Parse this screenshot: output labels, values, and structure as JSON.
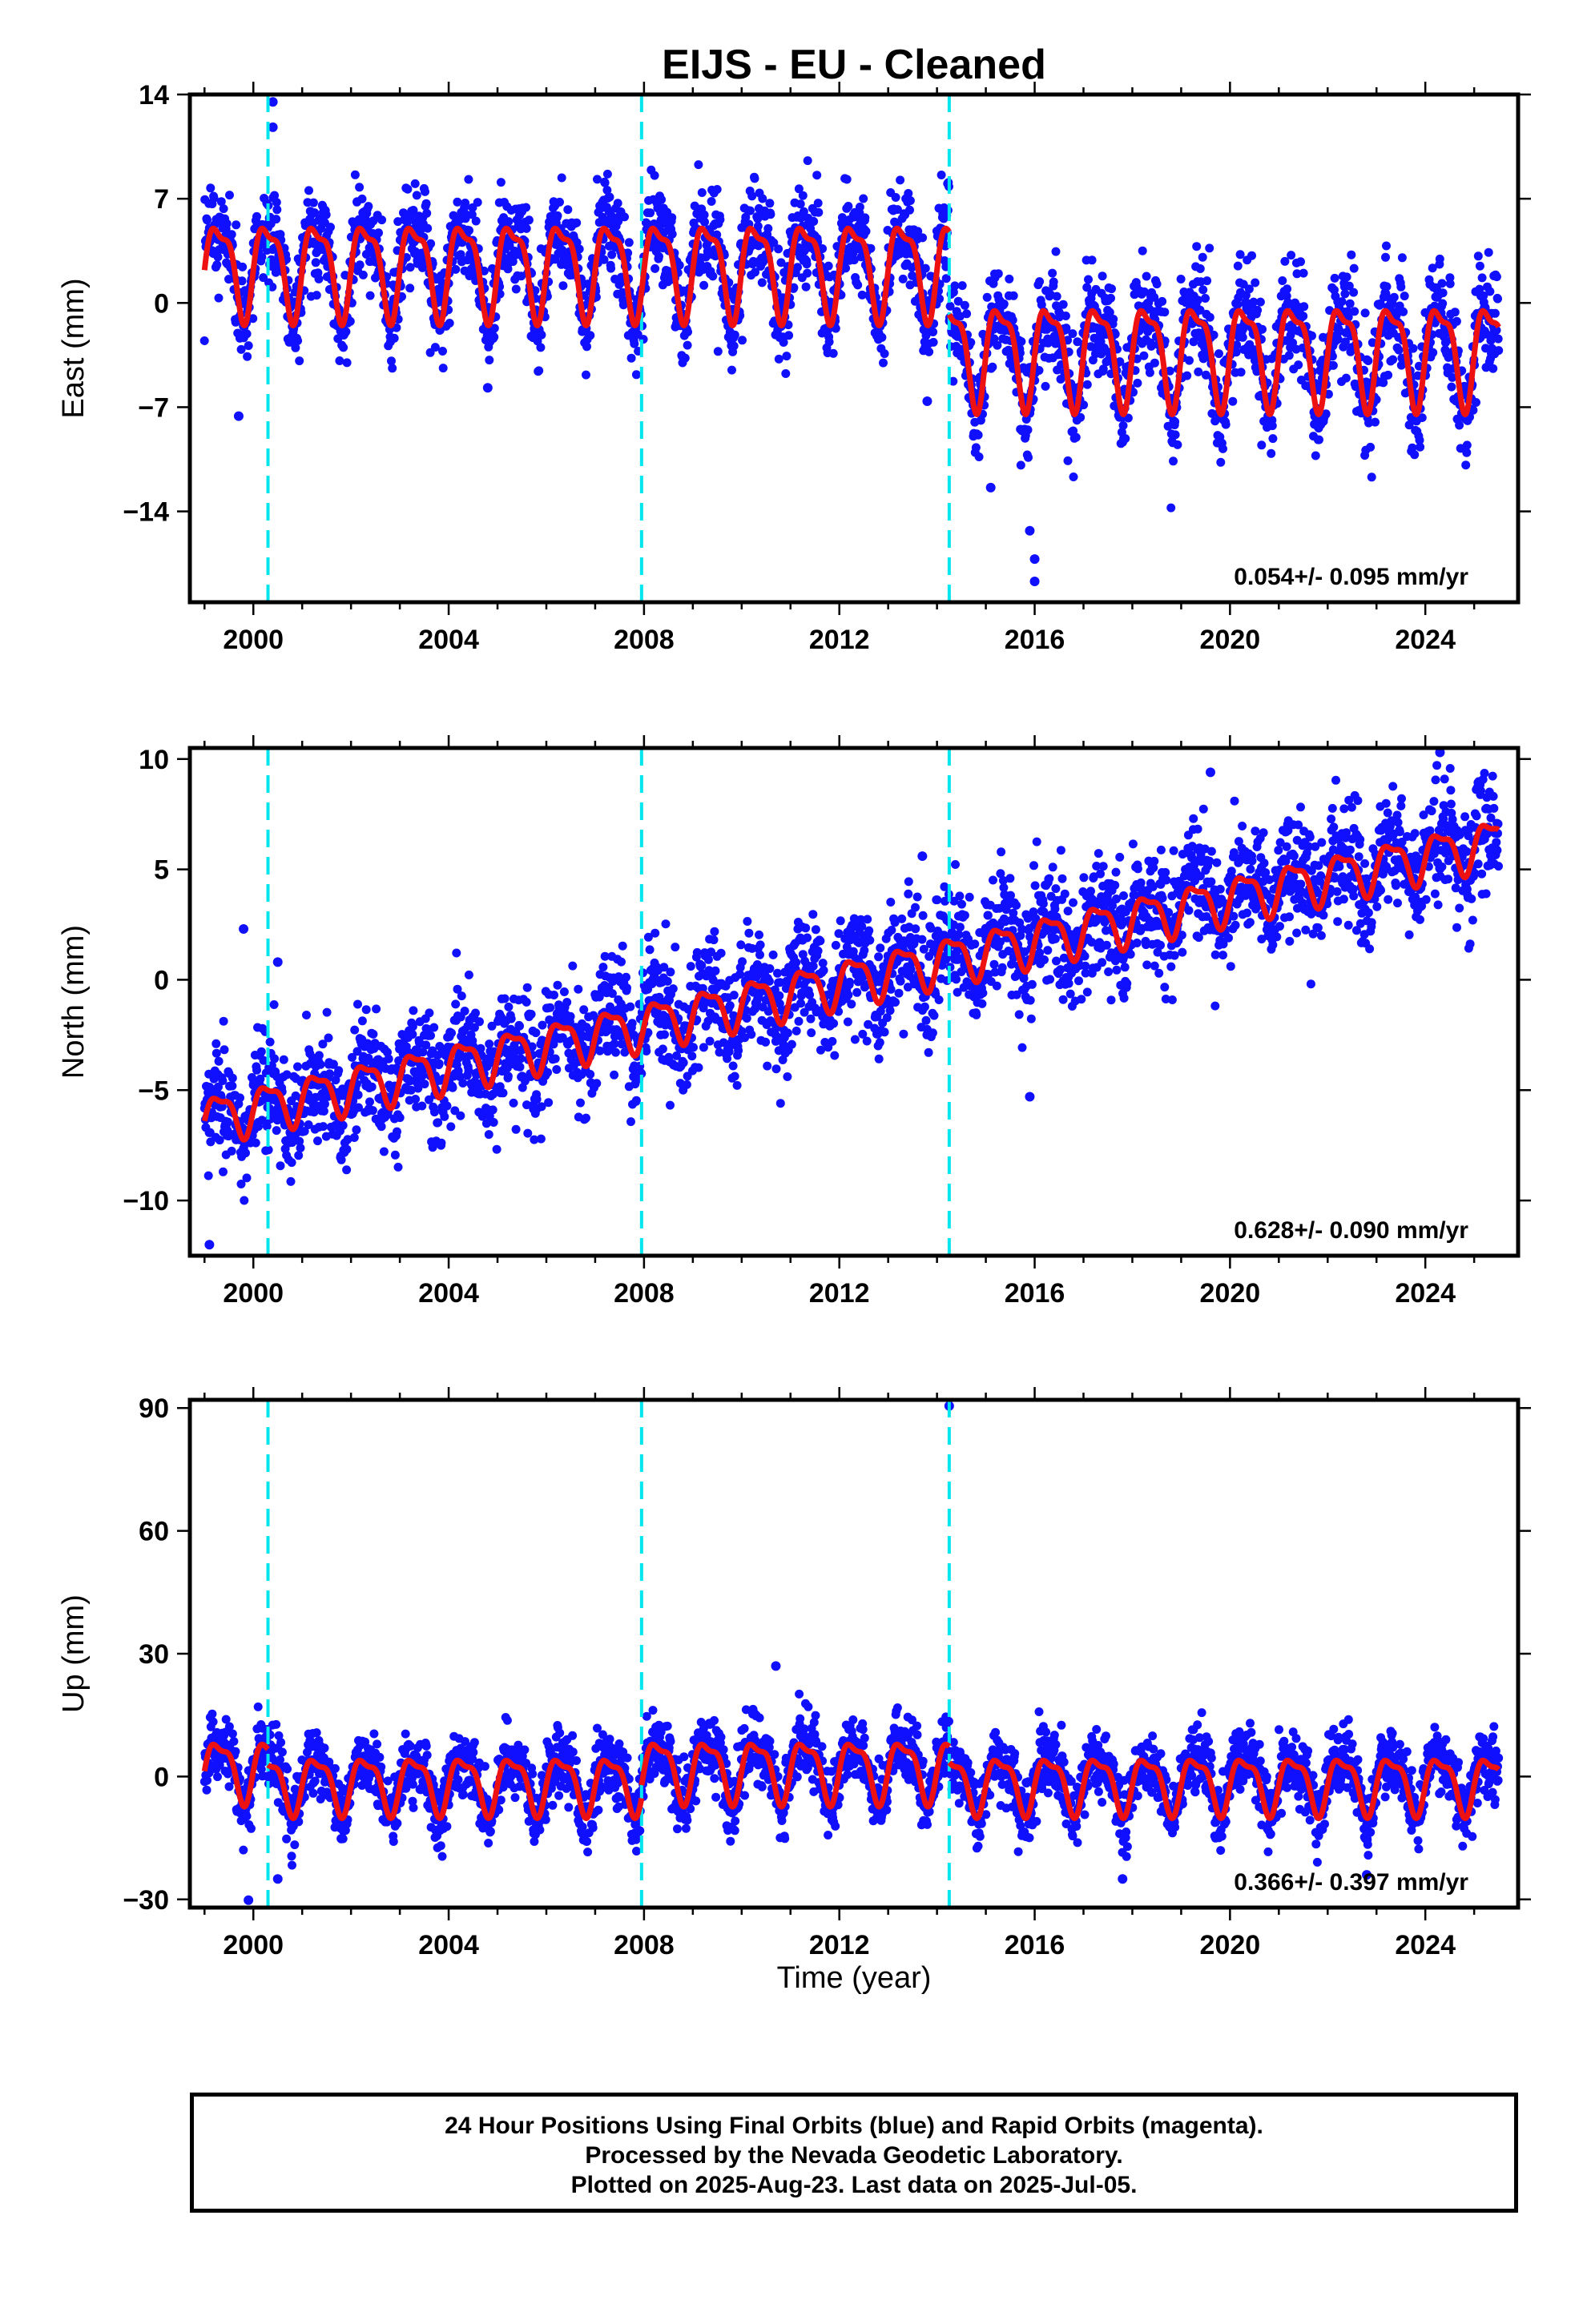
{
  "title": "EIJS  - EU - Cleaned",
  "xlabel": "Time (year)",
  "footer": {
    "line1": "24 Hour Positions Using Final Orbits (blue) and Rapid Orbits (magenta).",
    "line2": "Processed by the Nevada Geodetic Laboratory.",
    "line3": "Plotted on 2025-Aug-23. Last data on 2025-Jul-05."
  },
  "colors": {
    "final_orbits": "#1010ff",
    "model": "#ee1111",
    "offsets": "#00e5ee"
  },
  "chart_data": [
    {
      "type": "scatter",
      "ylabel": "East (mm)",
      "xlim": [
        1998.7,
        2025.9
      ],
      "ylim": [
        -20.1,
        14
      ],
      "xticks": [
        2000,
        2004,
        2008,
        2012,
        2016,
        2020,
        2024
      ],
      "yticks": [
        14,
        7,
        0,
        -7,
        -14
      ],
      "rate_label": "0.054+/- 0.095 mm/yr",
      "offset_epochs": [
        2000.3,
        2007.95,
        2014.25
      ],
      "series": [
        {
          "role": "daily positions",
          "x_range": [
            1999.0,
            2025.5
          ],
          "segments": [
            {
              "from": 1999.0,
              "to": 2014.25,
              "mean": 2.5,
              "seasonal_amplitude": 3.0,
              "scatter": 1.6
            },
            {
              "from": 2014.25,
              "to": 2025.5,
              "mean": -3.2,
              "seasonal_amplitude": 3.2,
              "scatter": 1.8
            }
          ],
          "outliers": [
            [
              2000.4,
              13.5
            ],
            [
              2000.4,
              11.8
            ],
            [
              1999.7,
              -7.6
            ],
            [
              2015.9,
              -15.3
            ],
            [
              2016.0,
              -17.2
            ],
            [
              2016.0,
              -18.7
            ],
            [
              2004.8,
              -5.7
            ],
            [
              2013.8,
              -6.6
            ],
            [
              2015.1,
              -12.4
            ]
          ]
        },
        {
          "role": "model",
          "segments": [
            {
              "from": 1999.0,
              "to": 2014.25,
              "mean": 2.5,
              "seasonal_amplitude": 3.0
            },
            {
              "from": 2014.25,
              "to": 2025.5,
              "mean": -3.2,
              "seasonal_amplitude": 3.2
            }
          ]
        }
      ]
    },
    {
      "type": "scatter",
      "ylabel": "North (mm)",
      "xlim": [
        1998.7,
        2025.9
      ],
      "ylim": [
        -12.5,
        10.5
      ],
      "xticks": [
        2000,
        2004,
        2008,
        2012,
        2016,
        2020,
        2024
      ],
      "yticks": [
        10,
        5,
        0,
        -5,
        -10
      ],
      "rate_label": "0.628+/- 0.090 mm/yr",
      "offset_epochs": [
        2000.3,
        2007.95,
        2014.25
      ],
      "series": [
        {
          "role": "daily positions",
          "x_range": [
            1999.0,
            2025.5
          ],
          "start_value": -6.3,
          "end_value": 6.3,
          "seasonal_amplitude": 1.0,
          "scatter": 1.3,
          "outliers": [
            [
              1999.1,
              -12.0
            ],
            [
              1999.8,
              2.3
            ],
            [
              2000.5,
              0.8
            ],
            [
              2013.7,
              5.6
            ],
            [
              2015.9,
              -5.3
            ],
            [
              2024.3,
              10.3
            ],
            [
              2019.6,
              9.4
            ]
          ]
        },
        {
          "role": "model",
          "start_value": -6.3,
          "end_value": 6.3,
          "seasonal_amplitude": 1.0
        }
      ]
    },
    {
      "type": "scatter",
      "ylabel": "Up (mm)",
      "xlim": [
        1998.7,
        2025.9
      ],
      "ylim": [
        -32,
        92
      ],
      "xticks": [
        2000,
        2004,
        2008,
        2012,
        2016,
        2020,
        2024
      ],
      "yticks": [
        90,
        60,
        30,
        0,
        -30
      ],
      "rate_label": "0.366+/- 0.397 mm/yr",
      "offset_epochs": [
        2000.3,
        2007.95,
        2014.25
      ],
      "series": [
        {
          "role": "daily positions",
          "x_range": [
            1999.0,
            2025.5
          ],
          "segments": [
            {
              "from": 1999.0,
              "to": 2000.3,
              "mean": 2.0,
              "seasonal_amplitude": 7.0,
              "scatter": 4.0
            },
            {
              "from": 2000.3,
              "to": 2007.95,
              "mean": -1.5,
              "seasonal_amplitude": 6.5,
              "scatter": 4.0
            },
            {
              "from": 2007.95,
              "to": 2014.25,
              "mean": 2.0,
              "seasonal_amplitude": 7.0,
              "scatter": 4.0
            },
            {
              "from": 2014.25,
              "to": 2025.5,
              "mean": -1.5,
              "seasonal_amplitude": 6.5,
              "scatter": 4.0
            }
          ],
          "outliers": [
            [
              2014.25,
              90.5
            ],
            [
              1999.9,
              -30.2
            ],
            [
              2000.5,
              -25.0
            ],
            [
              2010.7,
              27.0
            ],
            [
              2017.8,
              -25.0
            ],
            [
              2022.8,
              -24.0
            ]
          ]
        },
        {
          "role": "model",
          "segments": [
            {
              "from": 1999.0,
              "to": 2000.3,
              "mean": 2.0,
              "seasonal_amplitude": 7.0
            },
            {
              "from": 2000.3,
              "to": 2007.95,
              "mean": -1.5,
              "seasonal_amplitude": 6.5
            },
            {
              "from": 2007.95,
              "to": 2014.25,
              "mean": 2.0,
              "seasonal_amplitude": 7.0
            },
            {
              "from": 2014.25,
              "to": 2025.5,
              "mean": -1.5,
              "seasonal_amplitude": 6.5
            }
          ]
        }
      ]
    }
  ]
}
